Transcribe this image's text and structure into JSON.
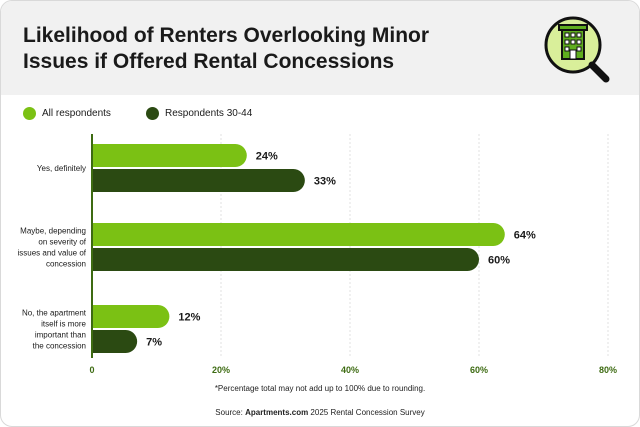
{
  "header": {
    "title_line1": "Likelihood of Renters Overlooking Minor",
    "title_line2": "Issues if Offered Rental Concessions"
  },
  "logo": {
    "icon": "building-magnifier-icon"
  },
  "colors": {
    "series1": "#7bc114",
    "series2": "#2b4a12",
    "axis": "#3d6b12",
    "grid": "#e0e0e0",
    "header_bg": "#f1f1f1",
    "logo_bg": "#d9ef9a"
  },
  "footnote": "*Percentage total may not add up to 100% due to rounding.",
  "source": {
    "prefix": "Source: ",
    "brand": "Apartments.com",
    "suffix": " 2025 Rental Concession Survey"
  },
  "chart_data": {
    "type": "bar",
    "orientation": "horizontal",
    "categories": [
      [
        "Yes, definitely"
      ],
      [
        "Maybe, depending",
        "on severity of",
        "issues and value of",
        "concession"
      ],
      [
        "No, the apartment",
        "itself is more",
        "important than",
        "the concession"
      ]
    ],
    "series": [
      {
        "name": "All respondents",
        "values": [
          24,
          64,
          12
        ],
        "labels": [
          "24%",
          "64%",
          "12%"
        ]
      },
      {
        "name": "Respondents 30-44",
        "values": [
          33,
          60,
          7
        ],
        "labels": [
          "33%",
          "60%",
          "7%"
        ]
      }
    ],
    "xlim": [
      0,
      80
    ],
    "xticks": [
      0,
      20,
      40,
      60,
      80
    ],
    "xtick_labels": [
      "0",
      "20%",
      "40%",
      "60%",
      "80%"
    ],
    "grid": true,
    "legend_position": "top-left"
  }
}
